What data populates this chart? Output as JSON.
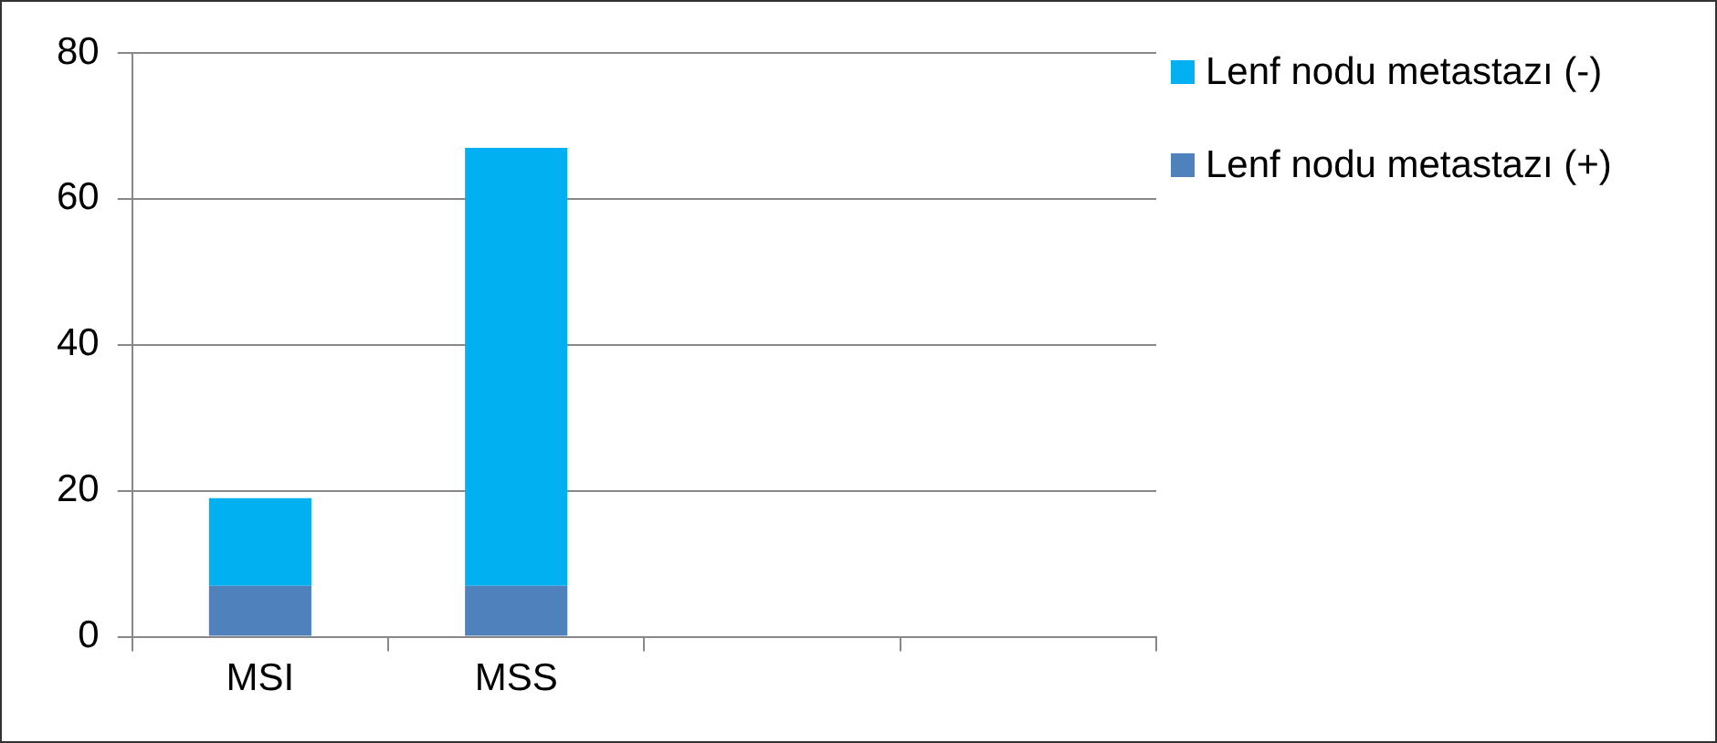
{
  "chart_data": {
    "type": "bar",
    "stacked": true,
    "categories": [
      "MSI",
      "MSS",
      null,
      null
    ],
    "series": [
      {
        "name": "Lenf nodu metastazı (+)",
        "color": "#4f81bd",
        "values": [
          7,
          7,
          null,
          null
        ]
      },
      {
        "name": "Lenf nodu metastazı (-)",
        "color": "#00b0f0",
        "values": [
          12,
          60,
          null,
          null
        ]
      }
    ],
    "ylim": [
      0,
      80
    ],
    "yticks": [
      0,
      20,
      40,
      60,
      80
    ],
    "grid": "y",
    "legend": "right"
  }
}
